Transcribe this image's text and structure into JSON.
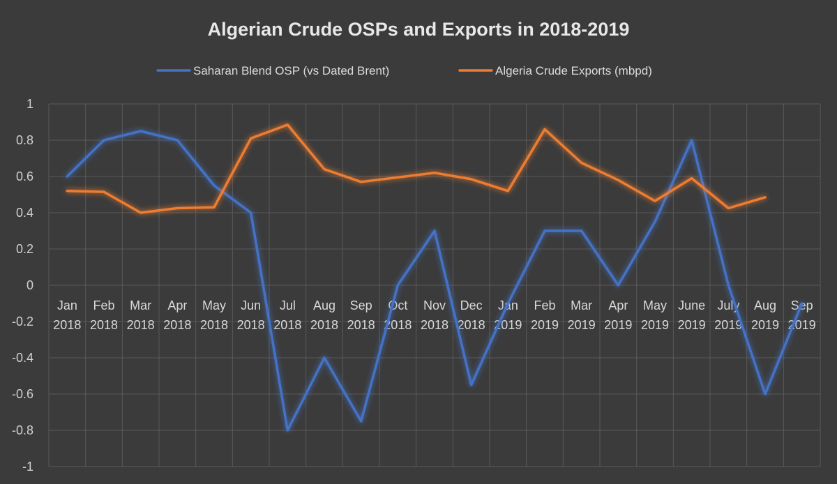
{
  "chart_data": {
    "type": "line",
    "title": "Algerian Crude OSPs and Exports in 2018-2019",
    "xlabel": "",
    "ylabel": "",
    "ylim": [
      -1,
      1
    ],
    "yticks": [
      1,
      0.8,
      0.6,
      0.4,
      0.2,
      0,
      -0.2,
      -0.4,
      -0.6,
      -0.8,
      -1
    ],
    "ytick_labels": [
      "1",
      "0.8",
      "0.6",
      "0.4",
      "0.2",
      "0",
      "-0.2",
      "-0.4",
      "-0.6",
      "-0.8",
      "-1"
    ],
    "categories": [
      {
        "month": "Jan",
        "year": "2018"
      },
      {
        "month": "Feb",
        "year": "2018"
      },
      {
        "month": "Mar",
        "year": "2018"
      },
      {
        "month": "Apr",
        "year": "2018"
      },
      {
        "month": "May",
        "year": "2018"
      },
      {
        "month": "Jun",
        "year": "2018"
      },
      {
        "month": "Jul",
        "year": "2018"
      },
      {
        "month": "Aug",
        "year": "2018"
      },
      {
        "month": "Sep",
        "year": "2018"
      },
      {
        "month": "Oct",
        "year": "2018"
      },
      {
        "month": "Nov",
        "year": "2018"
      },
      {
        "month": "Dec",
        "year": "2018"
      },
      {
        "month": "Jan",
        "year": "2019"
      },
      {
        "month": "Feb",
        "year": "2019"
      },
      {
        "month": "Mar",
        "year": "2019"
      },
      {
        "month": "Apr",
        "year": "2019"
      },
      {
        "month": "May",
        "year": "2019"
      },
      {
        "month": "June",
        "year": "2019"
      },
      {
        "month": "July",
        "year": "2019"
      },
      {
        "month": "Aug",
        "year": "2019"
      },
      {
        "month": "Sep",
        "year": "2019"
      }
    ],
    "grid": true,
    "legend_position": "top-center",
    "series": [
      {
        "name": "Saharan Blend OSP (vs Dated Brent)",
        "color": "#4472c4",
        "values": [
          0.6,
          0.8,
          0.85,
          0.8,
          0.55,
          0.4,
          -0.8,
          -0.4,
          -0.75,
          0.0,
          0.3,
          -0.55,
          -0.1,
          0.3,
          0.3,
          0.0,
          0.35,
          0.8,
          0.0,
          -0.6,
          -0.1
        ]
      },
      {
        "name": "Algeria Crude Exports (mbpd)",
        "color": "#ed7d31",
        "values": [
          0.52,
          0.515,
          0.4,
          0.425,
          0.43,
          0.81,
          0.885,
          0.64,
          0.57,
          0.595,
          0.62,
          0.585,
          0.52,
          0.86,
          0.675,
          0.58,
          0.465,
          0.59,
          0.425,
          0.485,
          null
        ]
      }
    ]
  }
}
